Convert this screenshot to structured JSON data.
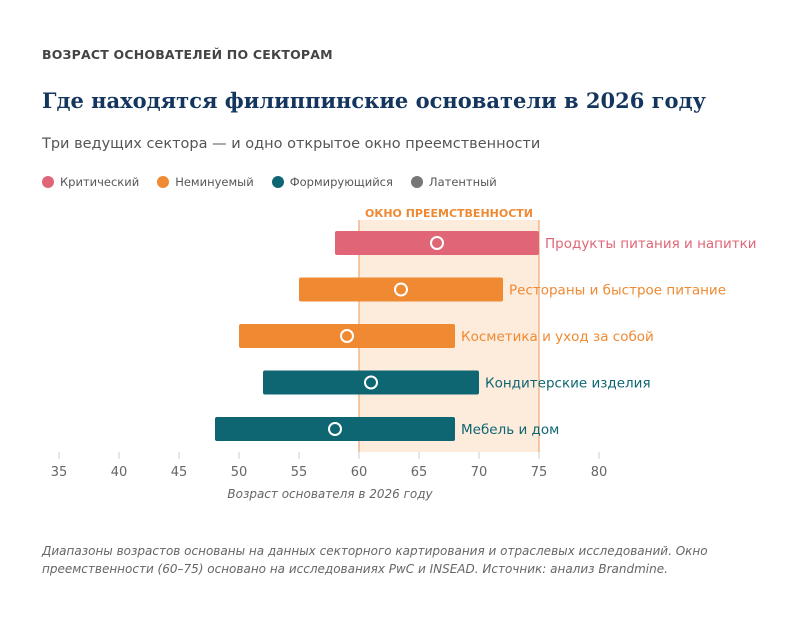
{
  "kicker": "ВОЗРАСТ ОСНОВАТЕЛЕЙ ПО СЕКТОРАМ",
  "title": "Где находятся филиппинские основатели в 2026 году",
  "subtitle": "Три ведущих сектора — и одно открытое окно преемственности",
  "legend": [
    {
      "label": "Критический",
      "color": "#e06677"
    },
    {
      "label": "Неминуемый",
      "color": "#ef8a33"
    },
    {
      "label": "Формирующийся",
      "color": "#0e6672"
    },
    {
      "label": "Латентный",
      "color": "#777777"
    }
  ],
  "footnote": "Диапазоны возрастов основаны на данных секторного картирования и отраслевых исследований. Окно преемственности (60–75) основано на исследованиях PwC и INSEAD. Источник: анализ Brandmine.",
  "chart_data": {
    "type": "range-bar",
    "xlabel": "Возраст основателя в 2026 году",
    "xlim": [
      35,
      80
    ],
    "xticks": [
      35,
      40,
      45,
      50,
      55,
      60,
      65,
      70,
      75,
      80
    ],
    "window": {
      "label": "ОКНО ПРЕЕМСТВЕННОСТИ",
      "from": 60,
      "to": 75
    },
    "series": [
      {
        "name": "Продукты питания и напитки",
        "min": 58,
        "max": 75,
        "median": 66.5,
        "status": "Критический",
        "color": "#e06677"
      },
      {
        "name": "Рестораны и быстрое питание",
        "min": 55,
        "max": 72,
        "median": 63.5,
        "status": "Неминуемый",
        "color": "#ef8a33"
      },
      {
        "name": "Косметика и уход за собой",
        "min": 50,
        "max": 68,
        "median": 59,
        "status": "Неминуемый",
        "color": "#ef8a33"
      },
      {
        "name": "Кондитерские изделия",
        "min": 52,
        "max": 70,
        "median": 61,
        "status": "Формирующийся",
        "color": "#0e6672"
      },
      {
        "name": "Мебель и дом",
        "min": 48,
        "max": 68,
        "median": 58,
        "status": "Формирующийся",
        "color": "#0e6672"
      }
    ]
  }
}
